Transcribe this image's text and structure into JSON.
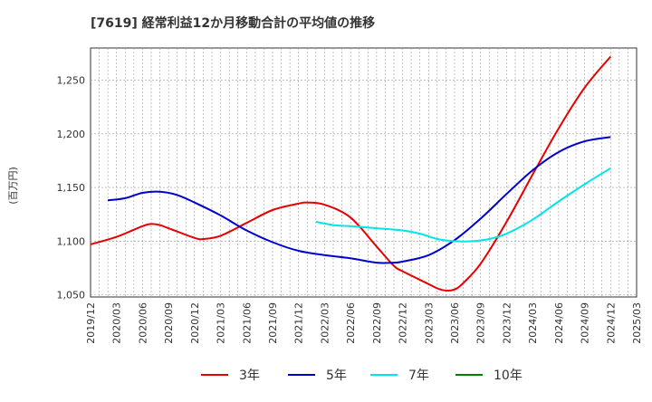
{
  "chart_data": {
    "type": "line",
    "title": "[7619]  経常利益12か月移動合計の平均値の推移",
    "ylabel": "(百万円)",
    "xlabel": "",
    "ylim": [
      1048,
      1280
    ],
    "y_ticks": [
      1050,
      1100,
      1150,
      1200,
      1250
    ],
    "y_tick_labels": [
      "1,050",
      "1,100",
      "1,150",
      "1,200",
      "1,250"
    ],
    "x_ticks": [
      "2019/12",
      "2020/03",
      "2020/06",
      "2020/09",
      "2020/12",
      "2021/03",
      "2021/06",
      "2021/09",
      "2021/12",
      "2022/03",
      "2022/06",
      "2022/09",
      "2022/12",
      "2023/03",
      "2023/06",
      "2023/09",
      "2023/12",
      "2024/03",
      "2024/06",
      "2024/09",
      "2024/12",
      "2025/03"
    ],
    "grid": true,
    "legend_position": "bottom",
    "series": [
      {
        "name": "3年",
        "color": "#e60000",
        "points": [
          [
            "2019/12",
            1097
          ],
          [
            "2020/03",
            1104
          ],
          [
            "2020/06",
            1114
          ],
          [
            "2020/07",
            1116
          ],
          [
            "2020/08",
            1115
          ],
          [
            "2020/09",
            1112
          ],
          [
            "2020/12",
            1103
          ],
          [
            "2021/01",
            1102
          ],
          [
            "2021/03",
            1105
          ],
          [
            "2021/06",
            1117
          ],
          [
            "2021/09",
            1129
          ],
          [
            "2021/12",
            1135
          ],
          [
            "2022/01",
            1136
          ],
          [
            "2022/03",
            1134
          ],
          [
            "2022/06",
            1122
          ],
          [
            "2022/09",
            1095
          ],
          [
            "2022/11",
            1077
          ],
          [
            "2022/12",
            1072
          ],
          [
            "2023/03",
            1060
          ],
          [
            "2023/04",
            1056
          ],
          [
            "2023/05",
            1054
          ],
          [
            "2023/06",
            1055
          ],
          [
            "2023/07",
            1061
          ],
          [
            "2023/09",
            1079
          ],
          [
            "2023/12",
            1118
          ],
          [
            "2024/03",
            1162
          ],
          [
            "2024/06",
            1205
          ],
          [
            "2024/09",
            1243
          ],
          [
            "2024/12",
            1272
          ]
        ]
      },
      {
        "name": "5年",
        "color": "#0000cc",
        "points": [
          [
            "2020/02",
            1138
          ],
          [
            "2020/04",
            1140
          ],
          [
            "2020/06",
            1145
          ],
          [
            "2020/08",
            1146
          ],
          [
            "2020/10",
            1143
          ],
          [
            "2020/12",
            1136
          ],
          [
            "2021/03",
            1124
          ],
          [
            "2021/06",
            1110
          ],
          [
            "2021/09",
            1099
          ],
          [
            "2021/12",
            1091
          ],
          [
            "2022/03",
            1087
          ],
          [
            "2022/06",
            1084
          ],
          [
            "2022/09",
            1080
          ],
          [
            "2022/11",
            1080
          ],
          [
            "2022/12",
            1081
          ],
          [
            "2023/03",
            1087
          ],
          [
            "2023/06",
            1101
          ],
          [
            "2023/09",
            1121
          ],
          [
            "2023/12",
            1144
          ],
          [
            "2024/03",
            1166
          ],
          [
            "2024/06",
            1183
          ],
          [
            "2024/09",
            1193
          ],
          [
            "2024/12",
            1197
          ]
        ]
      },
      {
        "name": "7年",
        "color": "#00e5e5",
        "points": [
          [
            "2022/02",
            1118
          ],
          [
            "2022/04",
            1115
          ],
          [
            "2022/06",
            1114
          ],
          [
            "2022/09",
            1112
          ],
          [
            "2022/12",
            1110
          ],
          [
            "2023/02",
            1107
          ],
          [
            "2023/04",
            1102
          ],
          [
            "2023/06",
            1100
          ],
          [
            "2023/08",
            1100
          ],
          [
            "2023/10",
            1102
          ],
          [
            "2023/12",
            1107
          ],
          [
            "2024/03",
            1120
          ],
          [
            "2024/06",
            1137
          ],
          [
            "2024/09",
            1153
          ],
          [
            "2024/12",
            1168
          ]
        ]
      },
      {
        "name": "10年",
        "color": "#008000",
        "points": []
      }
    ]
  }
}
